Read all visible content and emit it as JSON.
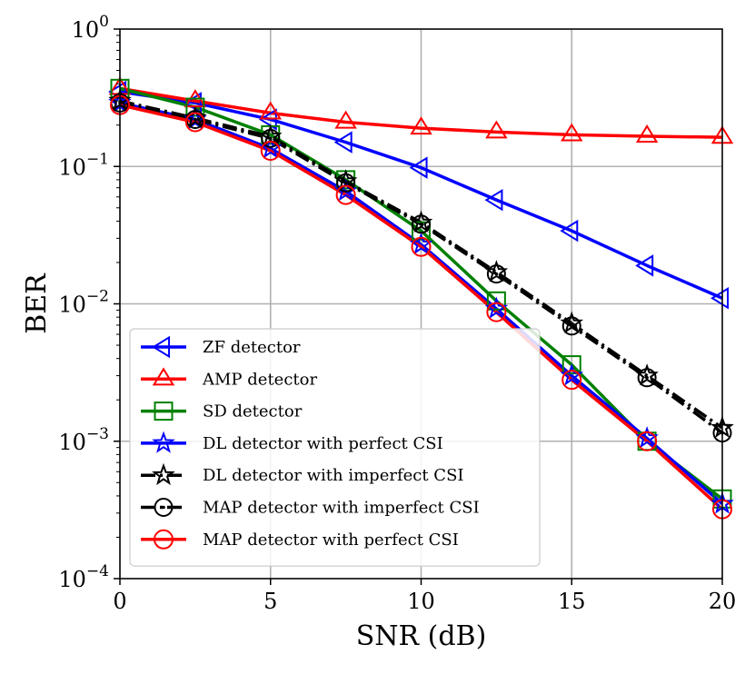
{
  "chart_data": {
    "type": "line",
    "xlabel": "SNR (dB)",
    "ylabel": "BER",
    "xlim": [
      0,
      20
    ],
    "ylim": [
      0.0001,
      1
    ],
    "yscale": "log",
    "grid": true,
    "legend_placement": "lower-left",
    "x_ticks": [
      0,
      5,
      10,
      15,
      20
    ],
    "x_tick_labels": [
      "0",
      "5",
      "10",
      "15",
      "20"
    ],
    "y_ticks": [
      0.0001,
      0.001,
      0.01,
      0.1,
      1
    ],
    "y_tick_labels": [
      {
        "base": "10",
        "exp": "−4"
      },
      {
        "base": "10",
        "exp": "−3"
      },
      {
        "base": "10",
        "exp": "−2"
      },
      {
        "base": "10",
        "exp": "−1"
      },
      {
        "base": "10",
        "exp": "0"
      }
    ],
    "x": [
      0,
      2.5,
      5,
      7.5,
      10,
      12.5,
      15,
      17.5,
      20
    ],
    "series": [
      {
        "name": "ZF detector",
        "color": "#0000ff",
        "marker": "triangle-left",
        "dash": "solid",
        "values": [
          0.35,
          0.29,
          0.22,
          0.15,
          0.098,
          0.057,
          0.034,
          0.019,
          0.011
        ]
      },
      {
        "name": "AMP detector",
        "color": "#ff0000",
        "marker": "triangle-up",
        "dash": "solid",
        "values": [
          0.37,
          0.3,
          0.245,
          0.21,
          0.19,
          0.178,
          0.17,
          0.166,
          0.163
        ]
      },
      {
        "name": "SD detector",
        "color": "#008000",
        "marker": "square",
        "dash": "solid",
        "values": [
          0.37,
          0.27,
          0.17,
          0.08,
          0.034,
          0.0105,
          0.0036,
          0.001,
          0.00038
        ]
      },
      {
        "name": "DL detector with perfect CSI",
        "color": "#0000ff",
        "marker": "star",
        "dash": "solid",
        "values": [
          0.29,
          0.22,
          0.135,
          0.066,
          0.027,
          0.0092,
          0.003,
          0.00105,
          0.00035
        ]
      },
      {
        "name": "DL detector with imperfect CSI",
        "color": "#000000",
        "marker": "star",
        "dash": "dashdot",
        "values": [
          0.3,
          0.225,
          0.165,
          0.078,
          0.039,
          0.017,
          0.0072,
          0.003,
          0.00125
        ]
      },
      {
        "name": "MAP detector with imperfect CSI",
        "color": "#000000",
        "marker": "circle-dot",
        "dash": "dashdot",
        "values": [
          0.29,
          0.22,
          0.16,
          0.076,
          0.038,
          0.0165,
          0.0069,
          0.0029,
          0.00115
        ]
      },
      {
        "name": "MAP detector with perfect CSI",
        "color": "#ff0000",
        "marker": "circle",
        "dash": "solid",
        "values": [
          0.28,
          0.21,
          0.13,
          0.062,
          0.026,
          0.0087,
          0.0028,
          0.001,
          0.00032
        ]
      }
    ]
  }
}
